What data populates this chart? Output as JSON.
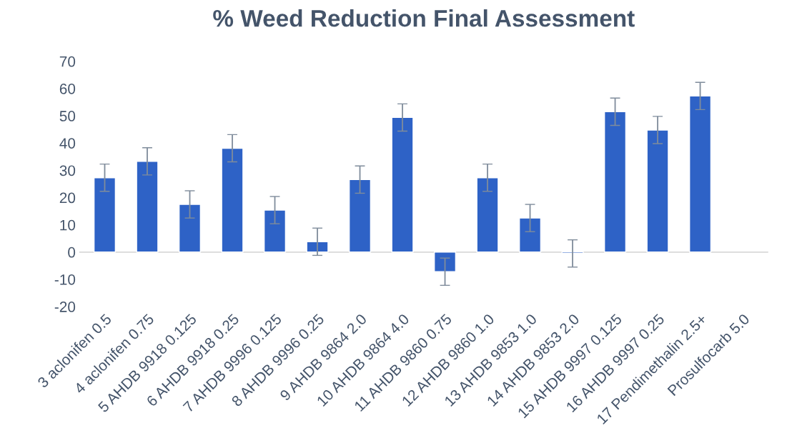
{
  "chart_data": {
    "type": "bar",
    "title": "% Weed Reduction Final Assessment",
    "categories": [
      "3 aclonifen 0.5",
      "4 aclonifen 0.75",
      "5 AHDB 9918 0.125",
      "6 AHDB 9918 0.25",
      "7 AHDB 9996 0.125",
      "8 AHDB 9996 0.25",
      "9 AHDB 9864 2.0",
      "10 AHDB 9864 4.0",
      "11 AHDB 9860 0.75",
      "12 AHDB 9860 1.0",
      "13 AHDB 9853 1.0",
      "14 AHDB 9853 2.0",
      "15 AHDB 9997 0.125",
      "16 AHDB 9997 0.25",
      "17 Pendimethalin 2.5+",
      "Prosulfocarb 5.0"
    ],
    "values": [
      27.3,
      33.3,
      17.5,
      38.1,
      15.4,
      3.8,
      26.6,
      49.4,
      -7.2,
      27.3,
      12.5,
      -0.5,
      51.5,
      44.8,
      57.3,
      null
    ],
    "errors": [
      5,
      5,
      5,
      5,
      5,
      5,
      5,
      5,
      5,
      5,
      5,
      5,
      5,
      5,
      5,
      null
    ],
    "color": "#2e62c6",
    "ylim": [
      -20,
      70
    ],
    "yticks": [
      -20,
      -10,
      0,
      10,
      20,
      30,
      40,
      50,
      60,
      70
    ]
  }
}
